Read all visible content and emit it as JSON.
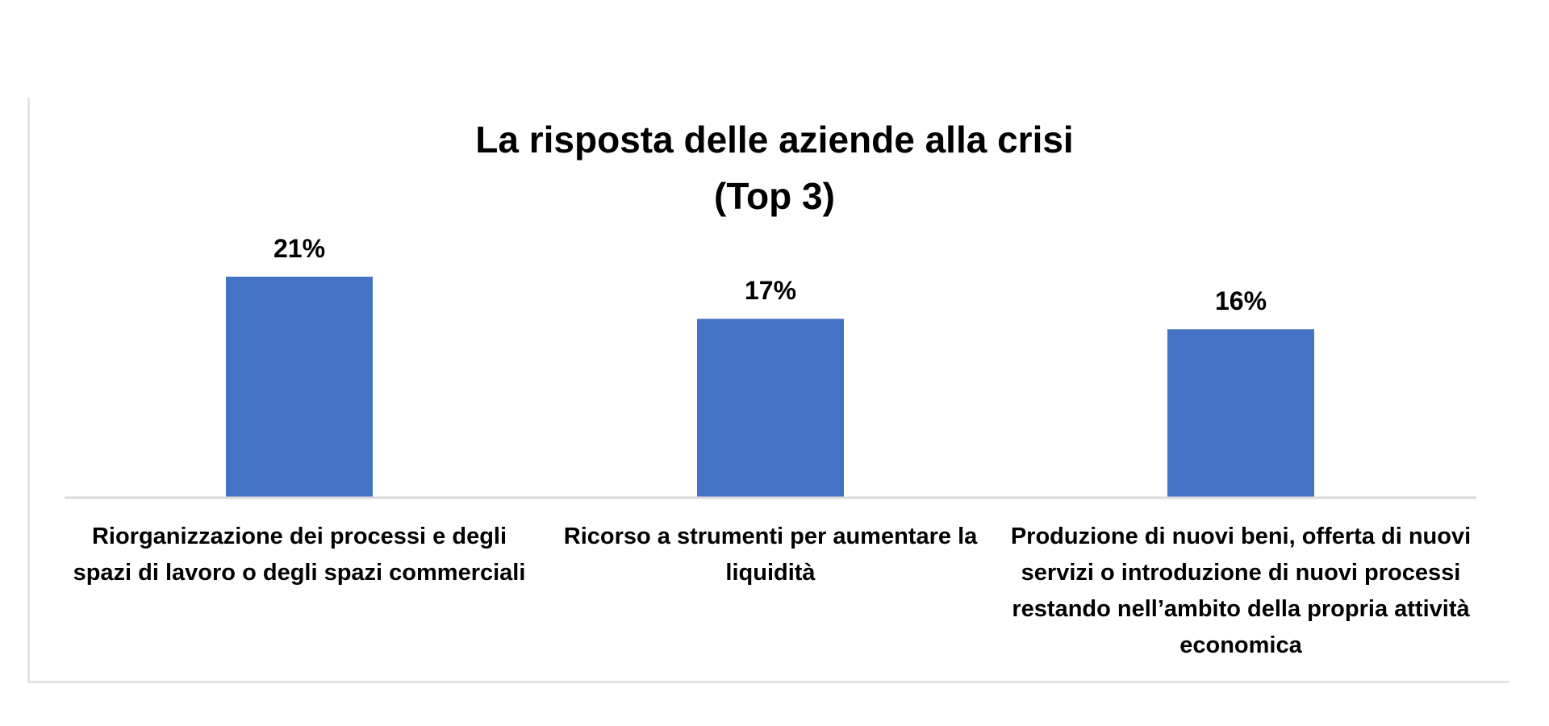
{
  "chart_data": {
    "type": "bar",
    "title": "La risposta delle aziende alla crisi",
    "subtitle": "(Top 3)",
    "categories": [
      "Riorganizzazione dei processi e degli spazi di lavoro o degli spazi commerciali",
      "Ricorso a strumenti per aumentare la liquidità",
      "Produzione di nuovi beni, offerta di nuovi servizi o introduzione di nuovi processi restando nell’ambito della propria attività economica"
    ],
    "values": [
      21,
      17,
      16
    ],
    "value_labels": [
      "21%",
      "17%",
      "16%"
    ],
    "unit": "%",
    "ylim": [
      0,
      21
    ],
    "grid": false,
    "legend": "none",
    "bar_color": "#4472C4",
    "axis_color": "#D9D9D9"
  }
}
